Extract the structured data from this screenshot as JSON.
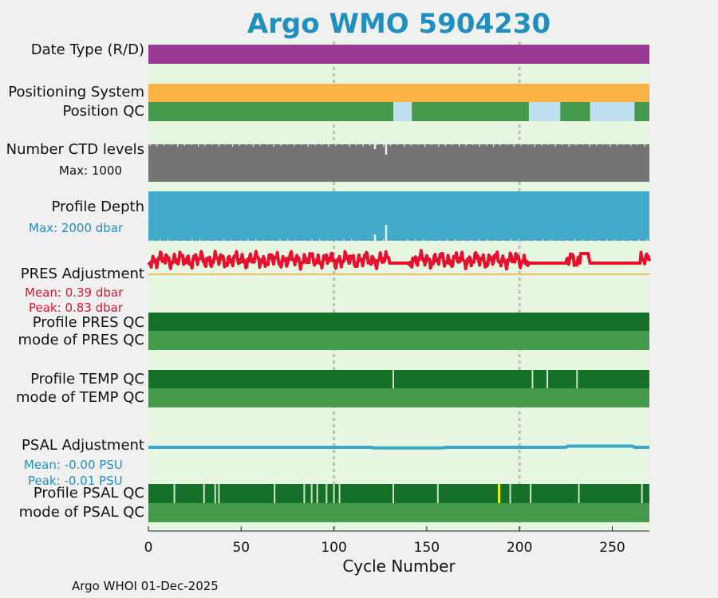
{
  "title": "Argo WMO 5904230",
  "footer": "Argo WHOI 01-Dec-2025",
  "colors": {
    "background": "#e6f6e0",
    "date_type": "#983a96",
    "positioning": "#fbb444",
    "qc_good": "#45994a",
    "qc_dark": "#157127",
    "qc_light_blue": "#bfe0ee",
    "ctd": "#747474",
    "depth": "#43aacc",
    "pres_adj": "#e5122f",
    "psal_adj": "#3aa8c8",
    "reference_line": "#f0b040",
    "qc_flag_yellow": "#f2f200",
    "qc_flag_gap": "#cfe4c8",
    "gridline": "#bdbdbd",
    "title": "#1f8fbf"
  },
  "labels": {
    "date_type": "Date Type (R/D)",
    "positioning": "Positioning System",
    "position_qc": "Position QC",
    "ctd": "Number CTD levels",
    "ctd_max": "Max: 1000",
    "depth": "Profile Depth",
    "depth_max": "Max: 2000 dbar",
    "pres_adj": "PRES Adjustment",
    "pres_mean": "Mean: 0.39 dbar",
    "pres_peak": "Peak: 0.83 dbar",
    "pres_qc": "Profile PRES QC",
    "pres_mode": "mode of PRES QC",
    "temp_qc": "Profile TEMP QC",
    "temp_mode": "mode of TEMP QC",
    "psal_adj": "PSAL Adjustment",
    "psal_mean": "Mean: -0.00 PSU",
    "psal_peak": "Peak: -0.01 PSU",
    "psal_qc": "Profile PSAL QC",
    "psal_mode": "mode of PSAL QC"
  },
  "chart_data": {
    "type": "bar",
    "xlabel": "Cycle Number",
    "xlim": [
      0,
      270
    ],
    "xticks": [
      0,
      50,
      100,
      150,
      200,
      250
    ],
    "gridlines_x": [
      100,
      200
    ],
    "position_qc_light_ranges": [
      [
        132,
        142
      ],
      [
        205,
        222
      ],
      [
        238,
        262
      ]
    ],
    "temp_qc_gaps": [
      132,
      207,
      215,
      231
    ],
    "psal_qc_gaps": [
      14,
      30,
      36,
      38,
      68,
      84,
      88,
      91,
      96,
      100,
      103,
      132,
      156,
      195,
      206,
      232,
      266
    ],
    "psal_qc_flags": [
      189
    ],
    "ctd_level_dips": [
      122,
      128
    ],
    "pres_adjustment": {
      "mean": 0.39,
      "peak": 0.83,
      "unit": "dbar",
      "flat_ranges": [
        [
          130,
          140
        ],
        [
          205,
          225
        ],
        [
          238,
          265
        ]
      ]
    },
    "psal_adjustment": {
      "mean": -0.0,
      "peak": -0.01,
      "unit": "PSU"
    }
  }
}
